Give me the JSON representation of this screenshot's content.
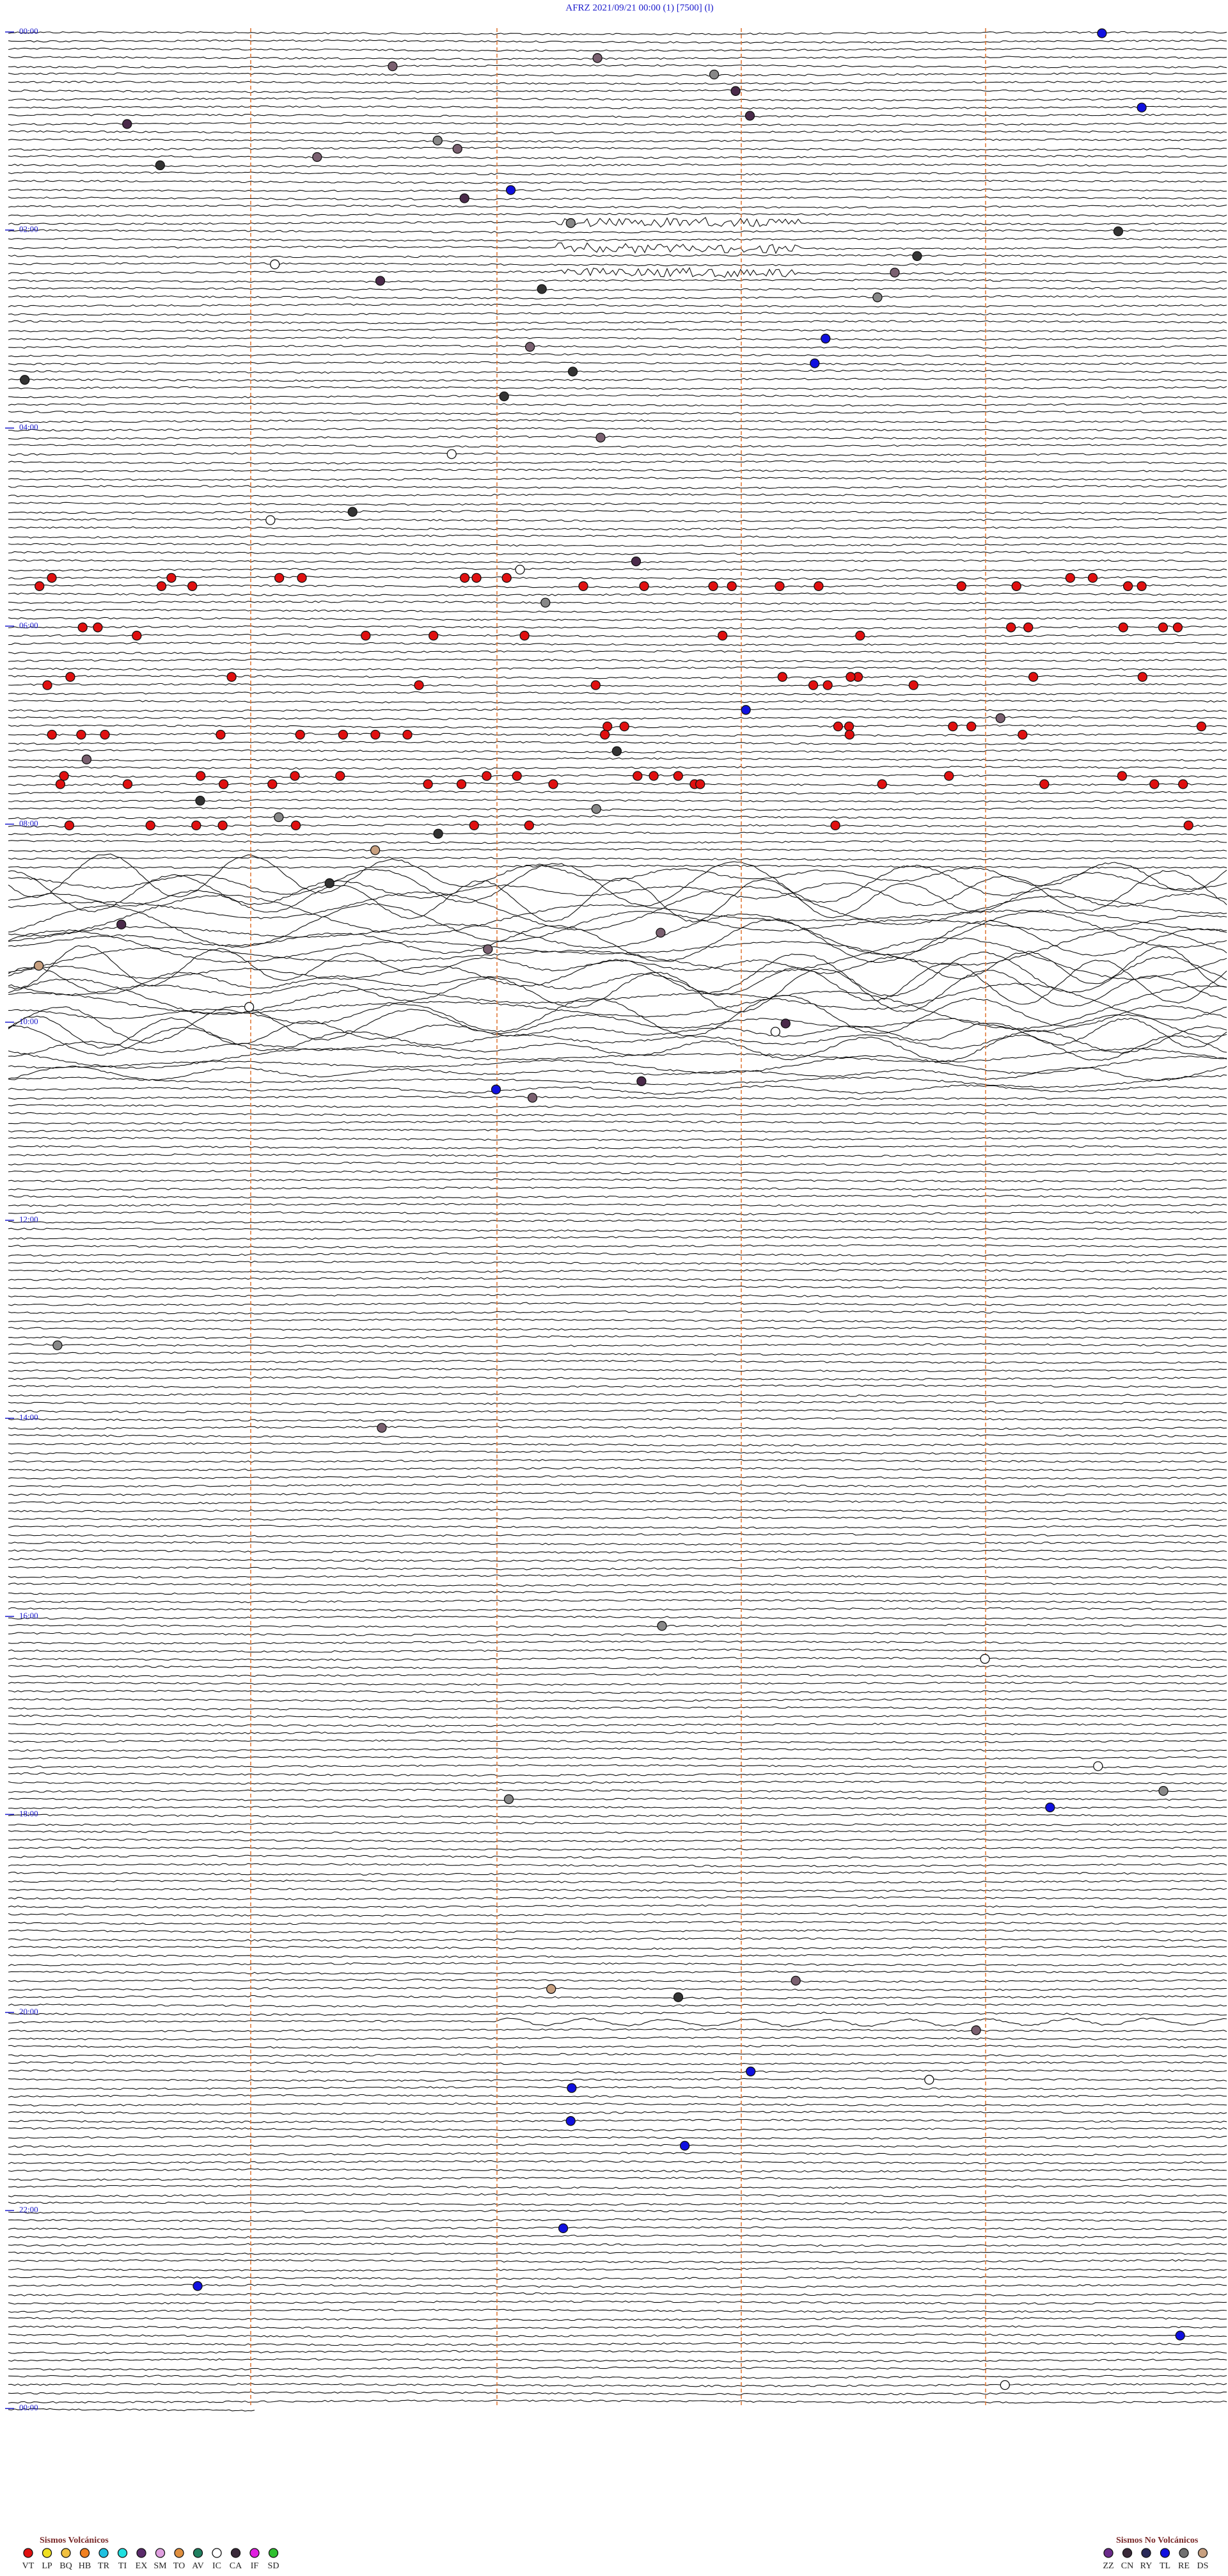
{
  "header": {
    "title": "AFRZ    2021/09/21 00:00    (1)    [7500]  (l)"
  },
  "time_labels": [
    "00:00",
    "02:00",
    "04:00",
    "06:00",
    "08:00",
    "10:00",
    "12:00",
    "14:00",
    "16:00",
    "18:00",
    "20:00",
    "22:00",
    "00:00"
  ],
  "legend": {
    "volcanic": {
      "title": "Sismos Volcánicos",
      "items": [
        "VT",
        "LP",
        "BQ",
        "HB",
        "TR",
        "TI",
        "EX",
        "SM",
        "TO",
        "AV",
        "IC",
        "CA",
        "IF",
        "SD"
      ]
    },
    "non_volcanic": {
      "title": "Sismos No Volcánicos",
      "items": [
        "ZZ",
        "CN",
        "RY",
        "TL",
        "RE",
        "DS"
      ]
    }
  }
}
